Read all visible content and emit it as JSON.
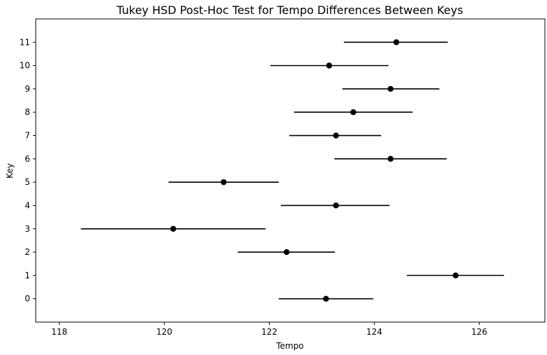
{
  "chart_data": {
    "type": "errorbar",
    "title": "Tukey HSD Post-Hoc Test for Tempo Differences Between Keys",
    "xlabel": "Tempo",
    "ylabel": "Key",
    "xlim": [
      117.55,
      127.25
    ],
    "ylim": [
      -1,
      12
    ],
    "xticks": [
      118,
      120,
      122,
      124,
      126
    ],
    "yticks": [
      0,
      1,
      2,
      3,
      4,
      5,
      6,
      7,
      8,
      9,
      10,
      11
    ],
    "grid": false,
    "points": [
      {
        "key": 0,
        "mean": 123.08,
        "low": 122.18,
        "high": 123.98
      },
      {
        "key": 1,
        "mean": 125.55,
        "low": 124.62,
        "high": 126.47
      },
      {
        "key": 2,
        "mean": 122.33,
        "low": 121.4,
        "high": 123.25
      },
      {
        "key": 3,
        "mean": 120.17,
        "low": 118.41,
        "high": 121.93
      },
      {
        "key": 4,
        "mean": 123.27,
        "low": 122.22,
        "high": 124.29
      },
      {
        "key": 5,
        "mean": 121.13,
        "low": 120.08,
        "high": 122.18
      },
      {
        "key": 6,
        "mean": 124.31,
        "low": 123.24,
        "high": 125.38
      },
      {
        "key": 7,
        "mean": 123.27,
        "low": 122.38,
        "high": 124.13
      },
      {
        "key": 8,
        "mean": 123.6,
        "low": 122.47,
        "high": 124.73
      },
      {
        "key": 9,
        "mean": 124.31,
        "low": 123.39,
        "high": 125.24
      },
      {
        "key": 10,
        "mean": 123.14,
        "low": 122.02,
        "high": 124.27
      },
      {
        "key": 11,
        "mean": 124.42,
        "low": 123.42,
        "high": 125.4
      }
    ],
    "marker_color": "#000000",
    "line_color": "#000000"
  }
}
